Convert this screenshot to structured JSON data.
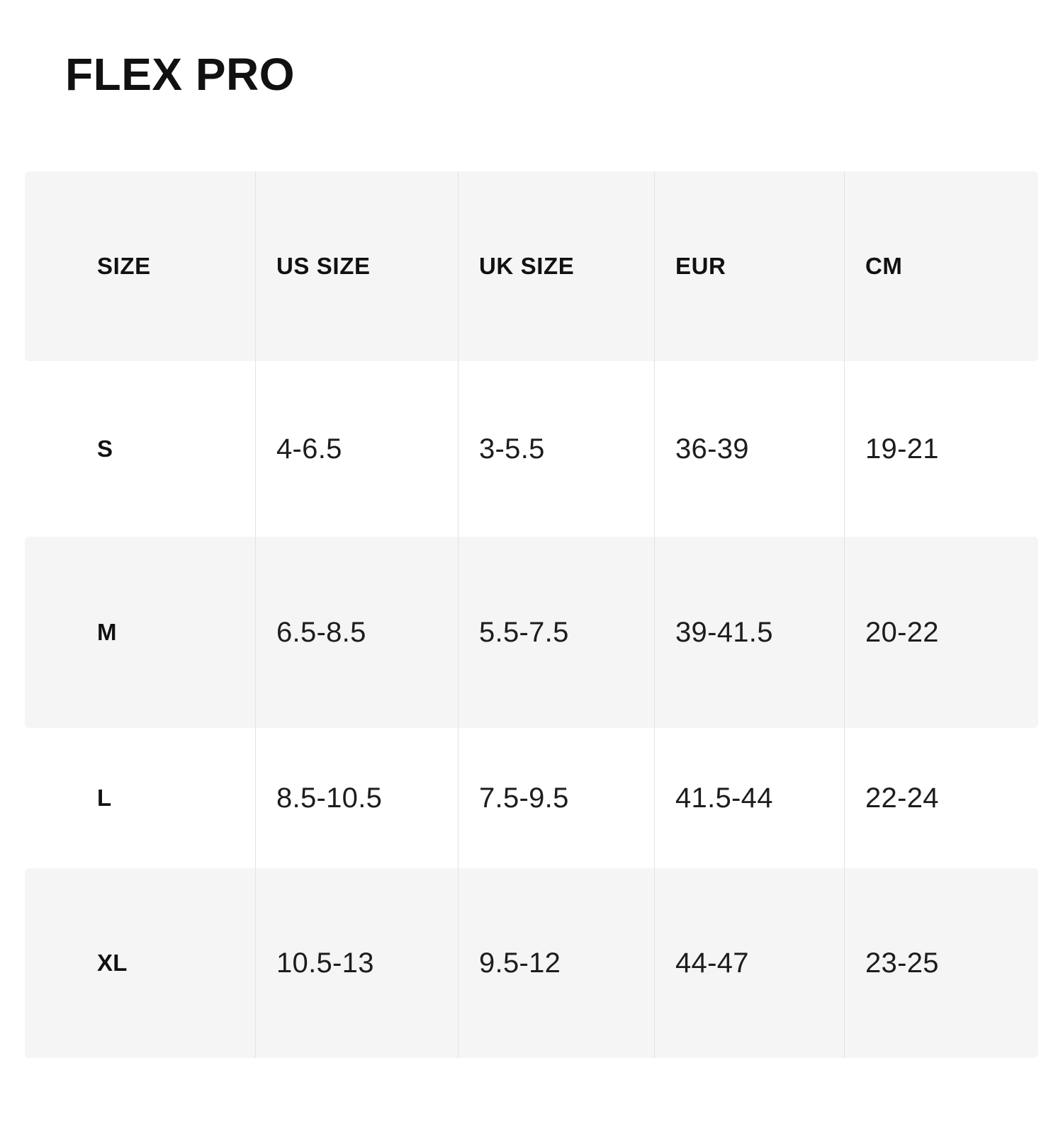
{
  "page": {
    "title": "FLEX PRO"
  },
  "size_chart": {
    "columns": {
      "size": "SIZE",
      "us": "US SIZE",
      "uk": "UK SIZE",
      "eur": "EUR",
      "cm": "CM"
    },
    "rows": [
      {
        "size": "S",
        "us": "4-6.5",
        "uk": "3-5.5",
        "eur": "36-39",
        "cm": "19-21"
      },
      {
        "size": "M",
        "us": "6.5-8.5",
        "uk": "5.5-7.5",
        "eur": "39-41.5",
        "cm": "20-22"
      },
      {
        "size": "L",
        "us": "8.5-10.5",
        "uk": "7.5-9.5",
        "eur": "41.5-44",
        "cm": "22-24"
      },
      {
        "size": "XL",
        "us": "10.5-13",
        "uk": "9.5-12",
        "eur": "44-47",
        "cm": "23-25"
      }
    ],
    "colors": {
      "stripe_background": "#f5f5f5",
      "separator_line": "#e2e2e2",
      "text": "#111111",
      "page_background": "#ffffff"
    }
  }
}
